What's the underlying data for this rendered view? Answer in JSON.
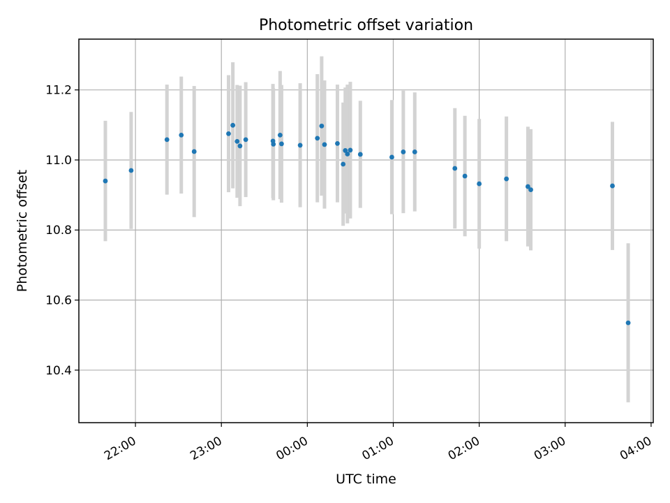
{
  "chart_data": {
    "type": "scatter",
    "title": "Photometric offset variation",
    "xlabel": "UTC time",
    "ylabel": "Photometric offset",
    "x_ticks": [
      "22:00",
      "23:00",
      "00:00",
      "01:00",
      "02:00",
      "03:00",
      "04:00"
    ],
    "y_ticks": [
      "10.4",
      "10.6",
      "10.8",
      "11.0",
      "11.2"
    ],
    "x_tick_values_min": [
      0,
      60,
      120,
      180,
      240,
      300,
      360
    ],
    "y_tick_values": [
      10.4,
      10.6,
      10.8,
      11.0,
      11.2
    ],
    "xlim_min": [
      -39.5,
      361.5
    ],
    "ylim": [
      10.25,
      11.345
    ],
    "grid": true,
    "colors": {
      "point": "#1f77b4",
      "errorbar": "#d3d3d3",
      "grid": "#b0b0b0",
      "axes": "#000000"
    },
    "points": [
      {
        "x": -21,
        "y": 10.94,
        "err": 0.172
      },
      {
        "x": -3,
        "y": 10.97,
        "err": 0.167
      },
      {
        "x": 22,
        "y": 11.058,
        "err": 0.157
      },
      {
        "x": 32,
        "y": 11.071,
        "err": 0.167
      },
      {
        "x": 41,
        "y": 11.024,
        "err": 0.187
      },
      {
        "x": 65,
        "y": 11.075,
        "err": 0.167
      },
      {
        "x": 68,
        "y": 11.099,
        "err": 0.18
      },
      {
        "x": 71,
        "y": 11.053,
        "err": 0.161
      },
      {
        "x": 73,
        "y": 11.04,
        "err": 0.172
      },
      {
        "x": 77,
        "y": 11.058,
        "err": 0.164
      },
      {
        "x": 96,
        "y": 11.054,
        "err": 0.163
      },
      {
        "x": 96.3,
        "y": 11.045,
        "err": 0.16
      },
      {
        "x": 101,
        "y": 11.071,
        "err": 0.183
      },
      {
        "x": 102,
        "y": 11.046,
        "err": 0.168
      },
      {
        "x": 115,
        "y": 11.042,
        "err": 0.177
      },
      {
        "x": 127,
        "y": 11.062,
        "err": 0.183
      },
      {
        "x": 130,
        "y": 11.097,
        "err": 0.199
      },
      {
        "x": 132,
        "y": 11.044,
        "err": 0.183
      },
      {
        "x": 141,
        "y": 11.047,
        "err": 0.168
      },
      {
        "x": 145,
        "y": 10.988,
        "err": 0.176
      },
      {
        "x": 146.5,
        "y": 11.027,
        "err": 0.18
      },
      {
        "x": 148,
        "y": 11.017,
        "err": 0.198
      },
      {
        "x": 150,
        "y": 11.028,
        "err": 0.195
      },
      {
        "x": 157,
        "y": 11.016,
        "err": 0.153
      },
      {
        "x": 179,
        "y": 11.008,
        "err": 0.163
      },
      {
        "x": 187,
        "y": 11.023,
        "err": 0.175
      },
      {
        "x": 195,
        "y": 11.023,
        "err": 0.17
      },
      {
        "x": 223,
        "y": 10.976,
        "err": 0.172
      },
      {
        "x": 230,
        "y": 10.954,
        "err": 0.172
      },
      {
        "x": 240,
        "y": 10.932,
        "err": 0.185
      },
      {
        "x": 259,
        "y": 10.946,
        "err": 0.178
      },
      {
        "x": 274,
        "y": 10.924,
        "err": 0.171
      },
      {
        "x": 276,
        "y": 10.915,
        "err": 0.173
      },
      {
        "x": 333,
        "y": 10.926,
        "err": 0.183
      },
      {
        "x": 344,
        "y": 10.535,
        "err": 0.227
      }
    ]
  }
}
